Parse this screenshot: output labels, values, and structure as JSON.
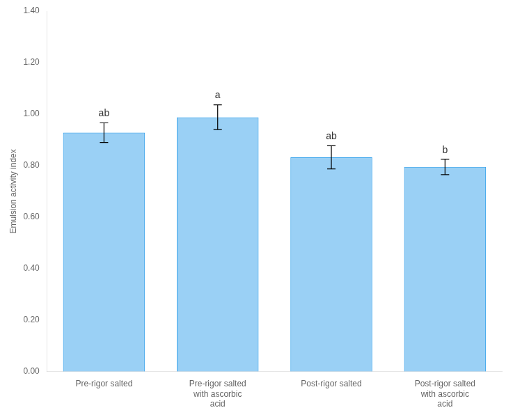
{
  "chart_data": {
    "type": "bar",
    "categories": [
      "Pre-rigor salted",
      "Pre-rigor salted\nwith ascorbic\nacid",
      "Post-rigor salted",
      "Post-rigor salted\nwith ascorbic\nacid"
    ],
    "values": [
      0.928,
      0.988,
      0.832,
      0.795
    ],
    "errors": [
      0.038,
      0.048,
      0.045,
      0.03
    ],
    "annotations": [
      "ab",
      "a",
      "ab",
      "b"
    ],
    "ylabel": "Emulsion activity index",
    "ylim": [
      0.0,
      1.4
    ],
    "yticks": [
      {
        "value": 0.0,
        "label": "0.00"
      },
      {
        "value": 0.2,
        "label": "0.20"
      },
      {
        "value": 0.4,
        "label": "0.40"
      },
      {
        "value": 0.6,
        "label": "0.60"
      },
      {
        "value": 0.8,
        "label": "0.80"
      },
      {
        "value": 1.0,
        "label": "1.00"
      },
      {
        "value": 1.2,
        "label": "1.20"
      },
      {
        "value": 1.4,
        "label": "1.40"
      }
    ],
    "grid": false
  }
}
